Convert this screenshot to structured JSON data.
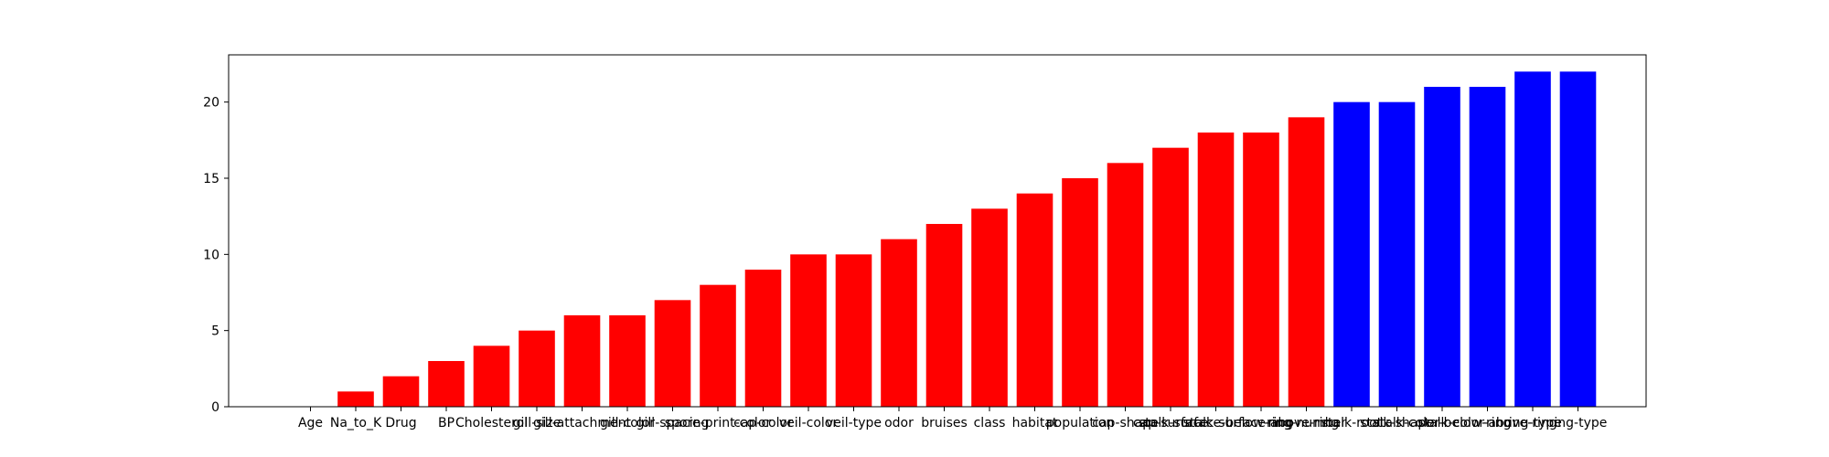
{
  "chart_data": {
    "type": "bar",
    "title": "",
    "xlabel": "",
    "ylabel": "",
    "categories": [
      "Age",
      "Na_to_K",
      "Drug",
      "BP",
      "Cholesterol",
      "gill-size",
      "gill-attachment",
      "gill-color",
      "gill-spacing",
      "spore-print-color",
      "cap-color",
      "veil-color",
      "veil-type",
      "odor",
      "bruises",
      "class",
      "habitat",
      "population",
      "cap-shape",
      "cap-surface",
      "stalk-surface-below-ring",
      "stalk-surface-above-ring",
      "ring-number",
      "stalk-root",
      "stalk-shape",
      "stalk-color-below-ring",
      "stalk-color-above-ring",
      "ring-type",
      "ring-type"
    ],
    "values": [
      0,
      1,
      2,
      3,
      4,
      5,
      6,
      6,
      7,
      8,
      9,
      10,
      10,
      11,
      12,
      13,
      14,
      15,
      16,
      17,
      18,
      18,
      19,
      20,
      20,
      21,
      21,
      22,
      22
    ],
    "colors": [
      "#ff0000",
      "#ff0000",
      "#ff0000",
      "#ff0000",
      "#ff0000",
      "#ff0000",
      "#ff0000",
      "#ff0000",
      "#ff0000",
      "#ff0000",
      "#ff0000",
      "#ff0000",
      "#ff0000",
      "#ff0000",
      "#ff0000",
      "#ff0000",
      "#ff0000",
      "#ff0000",
      "#ff0000",
      "#ff0000",
      "#ff0000",
      "#ff0000",
      "#ff0000",
      "#0000ff",
      "#0000ff",
      "#0000ff",
      "#0000ff",
      "#0000ff",
      "#0000ff"
    ],
    "ylim": [
      0,
      23.1
    ],
    "yticks": [
      0,
      5,
      10,
      15,
      20
    ],
    "grid": false,
    "legend": "none"
  }
}
